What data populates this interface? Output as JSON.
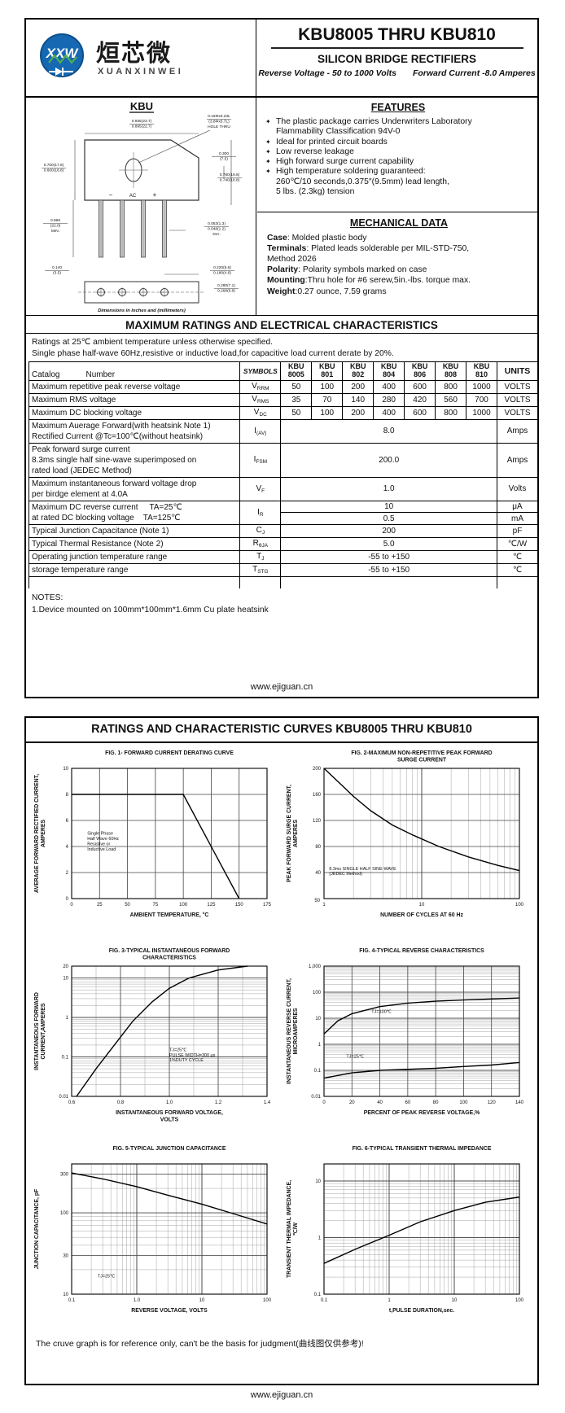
{
  "page1": {
    "logo": {
      "mark": "XXW",
      "cn": "烜芯微",
      "en": "XUANXINWEI"
    },
    "title": "KBU8005 THRU KBU810",
    "subtitle": "SILICON BRIDGE RECTIFIERS",
    "tagline_left": "Reverse Voltage - 50 to 1000 Volts",
    "tagline_right": "Forward Current -8.0 Amperes",
    "features": {
      "heading": "FEATURES",
      "items": [
        [
          "The plastic package carries Underwriters Laboratory",
          "Flammability Classification 94V-0"
        ],
        [
          "Ideal for printed circuit boards"
        ],
        [
          "Low reverse leakage"
        ],
        [
          "High forward surge current capability"
        ],
        [
          "High temperature soldering guaranteed:",
          "260℃/10 seconds,0.375″(9.5mm) lead length,",
          "5 lbs. (2.3kg) tension"
        ]
      ]
    },
    "mechanical": {
      "heading": "MECHANICAL DATA",
      "lines": [
        {
          "b": "Case",
          "t": ": Molded plastic body"
        },
        {
          "b": "Terminals",
          "t": ": Plated leads solderable per MIL-STD-750,"
        },
        {
          "b": "",
          "t": " Method 2026"
        },
        {
          "b": "Polarity",
          "t": ": Polarity symbols marked on case"
        },
        {
          "b": "Mounting",
          "t": ":Thru hole for #6 serew,5in.-lbs. torque max."
        },
        {
          "b": "Weight",
          "t": ":0.27 ounce, 7.59 grams"
        }
      ]
    },
    "package": {
      "name": "KBU",
      "caption": "Dimensions in inches and (millimeters)",
      "pin_marks": [
        "−",
        "AC",
        "+"
      ],
      "dims": [
        [
          "0.935(23.7)",
          "0.895(22.7)"
        ],
        [
          "0.15Φx0.23L",
          "(3.8Φx5.7L)",
          "HOLE THRU"
        ],
        [
          "0.300",
          "(7.5)"
        ],
        [
          "0.700(17.8)",
          "0.600(16.8)"
        ],
        [
          "0.780(19.8)",
          "0.740(18.8)"
        ],
        [
          "0.866",
          "(22.0)",
          "MIN."
        ],
        [
          "0.053(1.3)",
          "0.048(1.2)",
          "DIA."
        ],
        [
          "0.140",
          "(3.5)"
        ],
        [
          "0.220(5.6)",
          "0.180(4.6)"
        ],
        [
          "0.280(7.1)",
          "0.268(6.8)"
        ]
      ]
    },
    "ratings": {
      "heading": "MAXIMUM RATINGS AND ELECTRICAL CHARACTERISTICS",
      "note1": "Ratings at 25℃ ambient temperature unless otherwise specified.",
      "note2": "Single phase half-wave 60Hz,resistive or inductive load,for capacitive load current derate by 20%."
    },
    "table": {
      "catalog_label": "Catalog",
      "number_label": "Number",
      "symbols_label": "SYMBOLS",
      "units_label": "UNITS",
      "devices": [
        [
          "KBU",
          "8005"
        ],
        [
          "KBU",
          "801"
        ],
        [
          "KBU",
          "802"
        ],
        [
          "KBU",
          "804"
        ],
        [
          "KBU",
          "806"
        ],
        [
          "KBU",
          "808"
        ],
        [
          "KBU",
          "810"
        ]
      ],
      "rows": [
        {
          "p": [
            "Maximum repetitive peak reverse voltage"
          ],
          "s": [
            "V",
            "RRM"
          ],
          "v": [
            "50",
            "100",
            "200",
            "400",
            "600",
            "800",
            "1000"
          ],
          "u": "VOLTS"
        },
        {
          "p": [
            "Maximum RMS voltage"
          ],
          "s": [
            "V",
            "RMS"
          ],
          "v": [
            "35",
            "70",
            "140",
            "280",
            "420",
            "560",
            "700"
          ],
          "u": "VOLTS"
        },
        {
          "p": [
            "Maximum DC blocking voltage"
          ],
          "s": [
            "V",
            "DC"
          ],
          "v": [
            "50",
            "100",
            "200",
            "400",
            "600",
            "800",
            "1000"
          ],
          "u": "VOLTS"
        },
        {
          "p": [
            "Maximum Auerage Forward(with heatsink Note 1)",
            "Rectified Current @Tc=100℃(without heatsink)"
          ],
          "s": [
            "I",
            "(AV)"
          ],
          "span": "8.0",
          "u": "Amps"
        },
        {
          "p": [
            "Peak forward surge current",
            "8.3ms single half sine-wave superimposed on",
            "rated load (JEDEC Method)"
          ],
          "s": [
            "I",
            "FSM"
          ],
          "span": "200.0",
          "u": "Amps"
        },
        {
          "p": [
            "Maximum instantaneous forward voltage drop",
            "per birdge element at 4.0A"
          ],
          "s": [
            "V",
            "F"
          ],
          "span": "1.0",
          "u": "Volts"
        },
        {
          "p": [
            "Maximum DC reverse current     TA=25℃",
            "at rated DC blocking voltage    TA=125℃"
          ],
          "s": [
            "I",
            "R"
          ],
          "dual": [
            [
              "10",
              "μA"
            ],
            [
              "0.5",
              "mA"
            ]
          ]
        },
        {
          "p": [
            "Typical Junction Capacitance (Note 1)"
          ],
          "s": [
            "C",
            "J"
          ],
          "span": "200",
          "u": "pF"
        },
        {
          "p": [
            "Typical Thermal Resistance (Note 2)"
          ],
          "s": [
            "R",
            "θJA"
          ],
          "span": "5.0",
          "u": "℃/W"
        },
        {
          "p": [
            "Operating junction temperature range"
          ],
          "s": [
            "T",
            "J"
          ],
          "span": "-55 to +150",
          "u": "℃"
        },
        {
          "p": [
            "storage temperature range"
          ],
          "s": [
            "T",
            "STG"
          ],
          "span": "-55 to +150",
          "u": "℃"
        }
      ]
    },
    "notes": {
      "heading": "NOTES:",
      "items": [
        "1.Device mounted on 100mm*100mm*1.6mm Cu plate heatsink"
      ]
    },
    "footer": "www.ejiguan.cn"
  },
  "page2": {
    "heading": "RATINGS AND CHARACTERISTIC CURVES KBU8005 THRU KBU810",
    "disclaimer": "The cruve graph is for reference only, can't be the basis for judgment(曲线图仅供参考)!",
    "footer": "www.ejiguan.cn"
  },
  "chart_data": [
    {
      "id": "fig1",
      "type": "line",
      "title": [
        "FIG. 1- FORWARD CURRENT DERATING CURVE"
      ],
      "xlabel": [
        "AMBIENT TEMPERATURE, °C"
      ],
      "ylabel": [
        "AVERAGE FORWARD RECTIFIED CURRENT,",
        "AMPERES"
      ],
      "x": {
        "scale": "linear",
        "min": 0,
        "max": 175,
        "ticks": [
          "0",
          "25",
          "50",
          "75",
          "100",
          "125",
          "150",
          "175"
        ]
      },
      "y": {
        "scale": "linear",
        "min": 0,
        "max": 10,
        "ticks": [
          "10",
          "8",
          "6",
          "4",
          "2",
          "0"
        ]
      },
      "series": [
        {
          "name": "derating-curve",
          "points": [
            [
              0,
              8
            ],
            [
              100,
              8
            ],
            [
              150,
              0
            ]
          ]
        }
      ],
      "annotations": [
        {
          "x": 14,
          "y": 4.9,
          "lines": [
            "Single Phase",
            "Half Wave 60Hz",
            "Resistive or",
            "Inductive Load"
          ]
        }
      ]
    },
    {
      "id": "fig2",
      "type": "line",
      "title": [
        "FIG. 2-MAXIMUM NON-REPETITIVE PEAK FORWARD",
        "SURGE CURRENT"
      ],
      "xlabel": [
        "NUMBER OF CYCLES AT 60 Hz"
      ],
      "ylabel": [
        "PEAK  FORWARD SURGE CURRENT,",
        "AMPERES"
      ],
      "x": {
        "scale": "log",
        "min": 1,
        "max": 100,
        "ticks": [
          "1",
          "10",
          "100"
        ]
      },
      "y": {
        "scale": "linear",
        "min": 0,
        "max": 200,
        "ticks": [
          "200",
          "160",
          "120",
          "80",
          "40"
        ],
        "corner_label": "50"
      },
      "series": [
        {
          "name": "surge-current",
          "points": [
            [
              1,
              200
            ],
            [
              1.5,
              175
            ],
            [
              2,
              157
            ],
            [
              3,
              135
            ],
            [
              5,
              113
            ],
            [
              8,
              98
            ],
            [
              15,
              80
            ],
            [
              30,
              64
            ],
            [
              60,
              51
            ],
            [
              100,
              43
            ]
          ]
        }
      ],
      "annotations": [
        {
          "x": 1.13,
          "y": 44,
          "lines": [
            "8.3ms SINGLE HALF SINE-WAVE",
            "(JEDEC Method)"
          ]
        }
      ]
    },
    {
      "id": "fig3",
      "type": "line",
      "title": [
        "FIG. 3-TYPICAL INSTANTANEOUS FORWARD",
        "CHARACTERISTICS"
      ],
      "xlabel": [
        "INSTANTANEOUS FORWARD VOLTAGE,",
        "VOLTS"
      ],
      "ylabel": [
        "INSTANTANEOUS FORWARD",
        "CURRENT,AMPERES"
      ],
      "x": {
        "scale": "linear",
        "min": 0.6,
        "max": 1.4,
        "minor": 0.1,
        "ticks": [
          "0.6",
          "0.8",
          "1.0",
          "1.2",
          "1.4"
        ]
      },
      "y": {
        "scale": "log",
        "min": 0.01,
        "max": 20,
        "ticks": [
          "20",
          "10",
          "1",
          "0.1",
          "0.01"
        ]
      },
      "series": [
        {
          "name": "forward-characteristic",
          "points": [
            [
              0.62,
              0.01
            ],
            [
              0.7,
              0.05
            ],
            [
              0.78,
              0.22
            ],
            [
              0.85,
              0.8
            ],
            [
              0.93,
              2.5
            ],
            [
              1.0,
              5.5
            ],
            [
              1.08,
              10
            ],
            [
              1.2,
              16
            ],
            [
              1.32,
              20
            ]
          ]
        }
      ],
      "annotations": [
        {
          "x": 1.0,
          "y": 0.14,
          "lines": [
            "TJ=25℃",
            "PULSE WIDTH=300 μs",
            "1%DUTY CYCLE"
          ]
        }
      ]
    },
    {
      "id": "fig4",
      "type": "line",
      "title": [
        "FIG. 4-TYPICAL REVERSE CHARACTERISTICS"
      ],
      "xlabel": [
        "PERCENT OF PEAK REVERSE VOLTAGE,%"
      ],
      "ylabel": [
        "INSTANTANEOUS REVERSE CURRENT,",
        "MICROAMPERES"
      ],
      "x": {
        "scale": "linear",
        "min": 0,
        "max": 140,
        "ticks": [
          "0",
          "20",
          "40",
          "60",
          "80",
          "100",
          "120",
          "140"
        ]
      },
      "y": {
        "scale": "log",
        "min": 0.01,
        "max": 1000,
        "ticks": [
          "1,000",
          "100",
          "10",
          "1",
          "0.1",
          "0.01"
        ]
      },
      "series": [
        {
          "name": "reverse-current-tj100",
          "points": [
            [
              0,
              2.5
            ],
            [
              10,
              8
            ],
            [
              20,
              15
            ],
            [
              40,
              28
            ],
            [
              60,
              38
            ],
            [
              80,
              45
            ],
            [
              100,
              50
            ],
            [
              120,
              55
            ],
            [
              140,
              60
            ]
          ],
          "label": {
            "x": 34,
            "y": 16,
            "text": "TJ=100℃"
          }
        },
        {
          "name": "reverse-current-tj25",
          "points": [
            [
              0,
              0.05
            ],
            [
              20,
              0.08
            ],
            [
              40,
              0.1
            ],
            [
              60,
              0.11
            ],
            [
              80,
              0.12
            ],
            [
              100,
              0.14
            ],
            [
              120,
              0.16
            ],
            [
              140,
              0.2
            ]
          ],
          "label": {
            "x": 16,
            "y": 0.3,
            "text": "TJ=25℃"
          }
        }
      ]
    },
    {
      "id": "fig5",
      "type": "line",
      "title": [
        "FIG. 5-TYPICAL JUNCTION CAPACITANCE"
      ],
      "xlabel": [
        "REVERSE VOLTAGE, VOLTS"
      ],
      "ylabel": [
        "JUNCTION CAPACITANCE, pF"
      ],
      "x": {
        "scale": "log",
        "min": 0.1,
        "max": 100,
        "ticks": [
          "0.1",
          "1.0",
          "10",
          "100"
        ]
      },
      "y": {
        "scale": "log",
        "min": 10,
        "max": 400,
        "ticks": [
          "300",
          "100",
          "30",
          "10"
        ]
      },
      "series": [
        {
          "name": "junction-capacitance",
          "points": [
            [
              0.1,
              310
            ],
            [
              0.3,
              262
            ],
            [
              1,
              210
            ],
            [
              3,
              165
            ],
            [
              10,
              128
            ],
            [
              30,
              98
            ],
            [
              100,
              73
            ]
          ]
        }
      ],
      "annotations": [
        {
          "x": 0.25,
          "y": 16,
          "lines": [
            "TJ=25℃"
          ]
        }
      ]
    },
    {
      "id": "fig6",
      "type": "line",
      "title": [
        "FIG. 6-TYPICAL TRANSIENT THERMAL IMPEDANCE"
      ],
      "xlabel": [
        "t,PULSE DURATION,sec."
      ],
      "ylabel": [
        "TRANSIENT THERMAL IMPEDANCE,",
        "℃/W"
      ],
      "x": {
        "scale": "log",
        "min": 0.1,
        "max": 100,
        "ticks": [
          "0.1",
          "1",
          "10",
          "100"
        ]
      },
      "y": {
        "scale": "log",
        "min": 0.1,
        "max": 20,
        "ticks": [
          "10",
          "1",
          "0.1"
        ]
      },
      "series": [
        {
          "name": "thermal-impedance",
          "points": [
            [
              0.1,
              0.35
            ],
            [
              0.3,
              0.62
            ],
            [
              1,
              1.1
            ],
            [
              3,
              1.9
            ],
            [
              10,
              3
            ],
            [
              30,
              4.2
            ],
            [
              100,
              5.2
            ]
          ]
        }
      ]
    }
  ]
}
